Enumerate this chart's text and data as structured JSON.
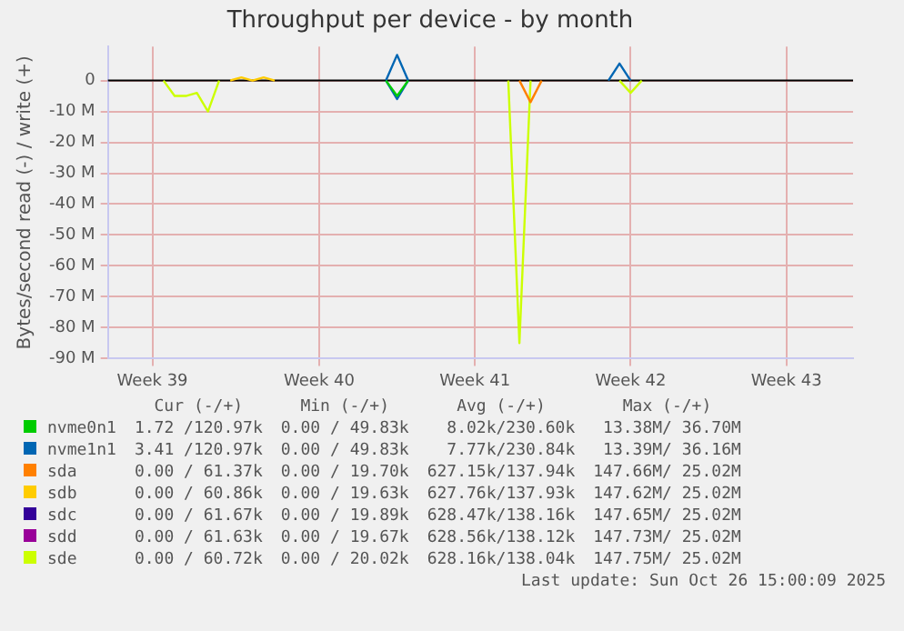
{
  "chart_data": {
    "type": "line",
    "title": "Throughput per device - by month",
    "ylabel": "Bytes/second read (-) / write (+)",
    "categories": [
      null,
      null,
      null,
      null,
      "Week 39",
      null,
      null,
      null,
      null,
      null,
      null,
      null,
      null,
      null,
      null,
      null,
      null,
      null,
      null,
      "Week 40",
      null,
      null,
      null,
      null,
      null,
      null,
      null,
      null,
      null,
      null,
      null,
      null,
      null,
      "Week 41",
      null,
      null,
      null,
      null,
      null,
      null,
      null,
      null,
      null,
      null,
      null,
      null,
      null,
      "Week 42",
      null,
      null,
      null,
      null,
      null,
      null,
      null,
      null,
      null,
      null,
      null,
      null,
      null,
      "Week 43",
      null,
      null,
      null,
      null,
      null,
      null
    ],
    "ylim": [
      -90,
      11
    ],
    "yticks": [
      {
        "value": -90,
        "label": "-90 M"
      },
      {
        "value": -80,
        "label": "-80 M"
      },
      {
        "value": -70,
        "label": "-70 M"
      },
      {
        "value": -60,
        "label": "-60 M"
      },
      {
        "value": -50,
        "label": "-50 M"
      },
      {
        "value": -40,
        "label": "-40 M"
      },
      {
        "value": -30,
        "label": "-30 M"
      },
      {
        "value": -20,
        "label": "-20 M"
      },
      {
        "value": -10,
        "label": "-10 M"
      },
      0
    ],
    "grid": true,
    "legend": "bottom",
    "marker": "none",
    "line_style": "solid",
    "ref_lines": [
      {
        "axis": "y",
        "value": 0,
        "color": "#000000"
      }
    ],
    "series": [
      {
        "name": "nvme0n1",
        "color": "#00cc00",
        "values": [
          null,
          null,
          null,
          null,
          null,
          null,
          null,
          null,
          null,
          null,
          null,
          null,
          null,
          null,
          null,
          null,
          null,
          null,
          null,
          null,
          null,
          null,
          null,
          null,
          null,
          0,
          -5,
          0,
          null,
          null,
          null,
          null,
          null,
          null,
          null,
          null,
          null,
          null,
          null,
          null,
          null,
          null,
          null,
          null,
          null,
          null,
          null,
          null,
          null,
          null,
          null,
          null,
          null,
          null,
          null,
          null,
          null,
          null,
          null,
          null,
          null,
          null,
          null,
          null,
          null,
          null,
          null,
          null
        ]
      },
      {
        "name": "nvme1n1",
        "color": "#0066b3",
        "values": [
          null,
          null,
          null,
          null,
          null,
          null,
          null,
          null,
          null,
          null,
          null,
          null,
          null,
          null,
          null,
          null,
          null,
          null,
          null,
          null,
          null,
          null,
          null,
          null,
          null,
          0,
          -6,
          0,
          null,
          null,
          null,
          null,
          null,
          null,
          null,
          null,
          null,
          null,
          null,
          null,
          null,
          null,
          null,
          null,
          null,
          null,
          null,
          null,
          null,
          null,
          null,
          null,
          null,
          null,
          null,
          null,
          null,
          null,
          null,
          null,
          null,
          null,
          null,
          null,
          null,
          null,
          null,
          null
        ]
      },
      {
        "color": "#0066b3",
        "values": [
          null,
          null,
          null,
          null,
          null,
          null,
          null,
          null,
          null,
          null,
          null,
          null,
          null,
          null,
          null,
          null,
          null,
          null,
          null,
          null,
          null,
          null,
          null,
          null,
          null,
          0,
          8.3,
          0,
          null,
          null,
          null,
          null,
          null,
          null,
          null,
          null,
          null,
          null,
          null,
          null,
          null,
          null,
          null,
          null,
          null,
          0,
          5.5,
          0,
          null,
          null,
          null,
          null,
          null,
          null,
          null,
          null,
          null,
          null,
          null,
          null,
          null,
          null,
          null,
          null,
          null,
          null,
          null,
          null
        ]
      },
      {
        "name": "sda",
        "color": "#ff8000",
        "values": [
          null,
          null,
          null,
          null,
          null,
          null,
          null,
          null,
          null,
          null,
          null,
          null,
          null,
          null,
          null,
          null,
          null,
          null,
          null,
          null,
          null,
          null,
          null,
          null,
          null,
          null,
          null,
          null,
          null,
          null,
          null,
          null,
          null,
          null,
          null,
          null,
          null,
          0,
          -7,
          0,
          null,
          null,
          null,
          null,
          null,
          null,
          null,
          null,
          null,
          null,
          null,
          null,
          null,
          null,
          null,
          null,
          null,
          null,
          null,
          null,
          null,
          null,
          null,
          null,
          null,
          null,
          null,
          null
        ]
      },
      {
        "name": "sdb",
        "color": "#ffcc00",
        "values": [
          null,
          null,
          null,
          null,
          null,
          null,
          null,
          null,
          null,
          null,
          null,
          0,
          1,
          0,
          1,
          0,
          null,
          null,
          null,
          null,
          null,
          null,
          null,
          null,
          null,
          null,
          null,
          null,
          null,
          null,
          null,
          null,
          null,
          null,
          null,
          null,
          null,
          null,
          null,
          null,
          null,
          null,
          null,
          null,
          null,
          null,
          null,
          null,
          null,
          null,
          null,
          null,
          null,
          null,
          null,
          null,
          null,
          null,
          null,
          null,
          null,
          null,
          null,
          null,
          null,
          null,
          null,
          null
        ]
      },
      {
        "name": "sdc",
        "color": "#330099",
        "values": [
          null,
          null,
          null,
          null,
          null,
          null,
          null,
          null,
          null,
          null,
          null,
          null,
          null,
          null,
          null,
          null,
          null,
          null,
          null,
          null,
          null,
          null,
          null,
          null,
          null,
          null,
          null,
          null,
          null,
          null,
          null,
          null,
          null,
          null,
          null,
          null,
          null,
          null,
          null,
          null,
          null,
          null,
          null,
          null,
          null,
          null,
          null,
          null,
          null,
          null,
          null,
          null,
          null,
          null,
          null,
          null,
          null,
          null,
          null,
          null,
          null,
          null,
          null,
          null,
          null,
          null,
          null,
          null
        ]
      },
      {
        "name": "sdd",
        "color": "#990099",
        "values": [
          null,
          null,
          null,
          null,
          null,
          null,
          null,
          null,
          null,
          null,
          null,
          null,
          null,
          null,
          null,
          null,
          null,
          null,
          null,
          null,
          null,
          null,
          null,
          null,
          null,
          null,
          null,
          null,
          null,
          null,
          null,
          null,
          null,
          null,
          null,
          null,
          null,
          null,
          null,
          null,
          null,
          null,
          null,
          null,
          null,
          null,
          null,
          null,
          null,
          null,
          null,
          null,
          null,
          null,
          null,
          null,
          null,
          null,
          null,
          null,
          null,
          null,
          null,
          null,
          null,
          null,
          null,
          null
        ]
      },
      {
        "name": "sde",
        "color": "#ccff00",
        "values": [
          null,
          null,
          null,
          null,
          null,
          0,
          -5,
          -5,
          -4,
          -10,
          0,
          null,
          null,
          null,
          null,
          null,
          null,
          null,
          null,
          null,
          null,
          null,
          null,
          null,
          null,
          null,
          null,
          null,
          null,
          null,
          null,
          null,
          null,
          null,
          null,
          null,
          0,
          -85,
          0,
          null,
          null,
          null,
          null,
          null,
          null,
          null,
          0,
          -4,
          0,
          null,
          null,
          null,
          null,
          null,
          null,
          null,
          null,
          null,
          null,
          null,
          null,
          null,
          null,
          null,
          null,
          null,
          null,
          null
        ]
      }
    ],
    "annotations": [
      "Cur (-/+)",
      "Min (-/+)",
      "Avg (-/+)",
      "Max (-/+)",
      "1.72 /120.97k",
      "0.00 / 49.83k",
      "8.02k/230.60k",
      "13.38M/ 36.70M",
      "3.41 /120.97k",
      "0.00 / 49.83k",
      "7.77k/230.84k",
      "13.39M/ 36.16M",
      "0.00 / 61.37k",
      "0.00 / 19.70k",
      "627.15k/137.94k",
      "147.66M/ 25.02M",
      "0.00 / 60.86k",
      "0.00 / 19.63k",
      "627.76k/137.93k",
      "147.62M/ 25.02M",
      "0.00 / 61.67k",
      "0.00 / 19.89k",
      "628.47k/138.16k",
      "147.65M/ 25.02M",
      "0.00 / 61.63k",
      "0.00 / 19.67k",
      "628.56k/138.12k",
      "147.73M/ 25.02M",
      "0.00 / 60.72k",
      "0.00 / 20.02k",
      "628.16k/138.04k",
      "147.75M/ 25.02M",
      "Last update: Sun Oct 26 15:00:09 2025"
    ]
  }
}
